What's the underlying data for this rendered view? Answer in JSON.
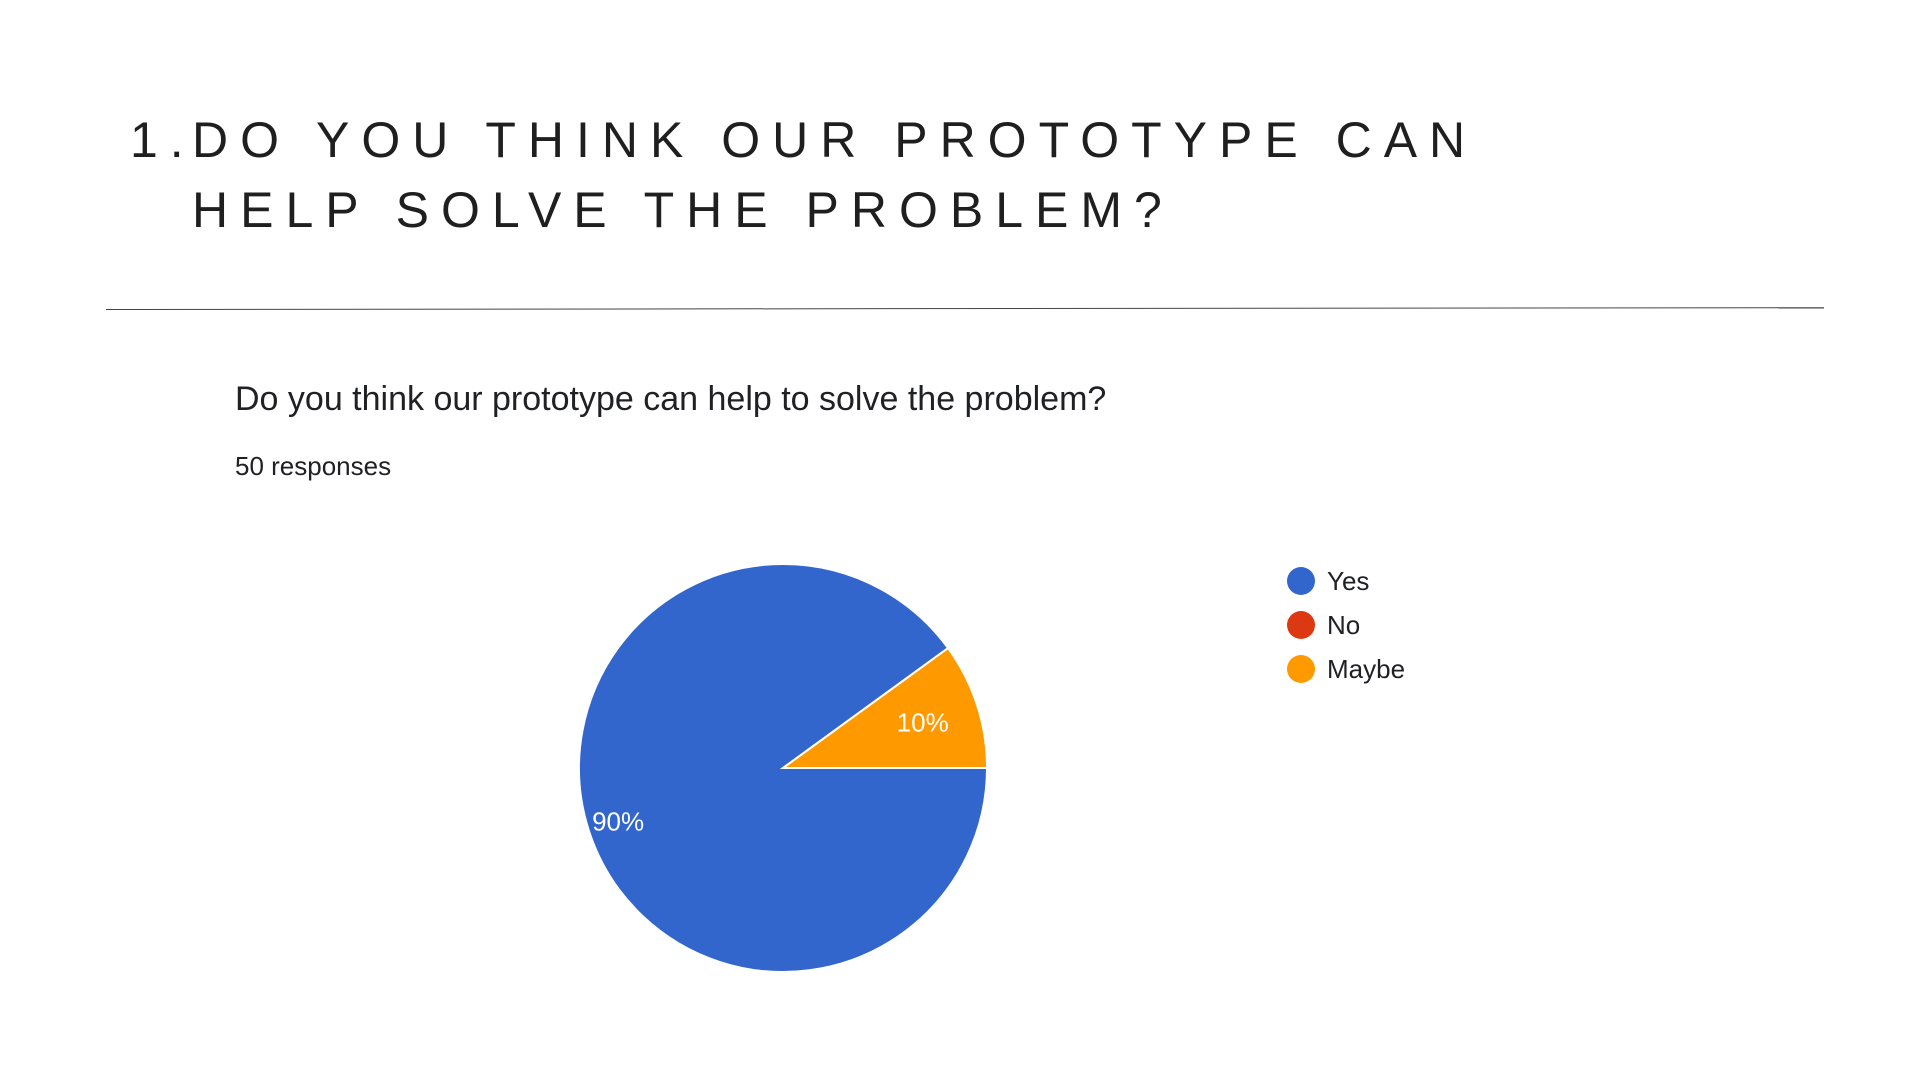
{
  "slide": {
    "number": "1.",
    "heading": "DO YOU THINK OUR PROTOTYPE CAN HELP SOLVE THE PROBLEM?"
  },
  "colors": {
    "yes": "#3366cc",
    "no": "#dc3912",
    "maybe": "#ff9900"
  },
  "chart_data": {
    "type": "pie",
    "title": "Do you think our prototype can help to solve the problem?",
    "subtitle": "50 responses",
    "legend_position": "right",
    "slices": [
      {
        "name": "Yes",
        "value": 90,
        "label": "90%",
        "color": "#3366cc"
      },
      {
        "name": "No",
        "value": 0,
        "label": "",
        "color": "#dc3912"
      },
      {
        "name": "Maybe",
        "value": 10,
        "label": "10%",
        "color": "#ff9900"
      }
    ]
  }
}
